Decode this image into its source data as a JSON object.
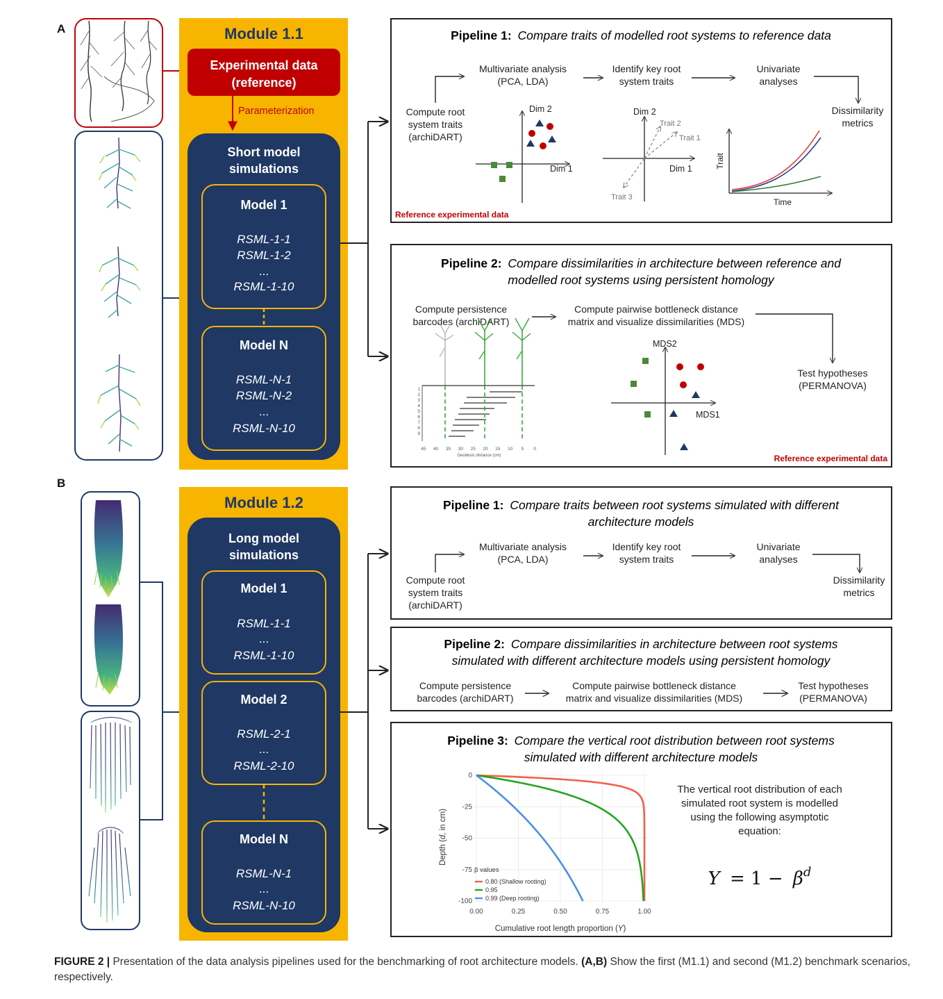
{
  "figure": {
    "caption_label": "FIGURE 2 |",
    "caption_text": "Presentation of the data analysis pipelines used for the benchmarking of root architecture models.",
    "caption_refs": "(A,B)",
    "caption_rest": "Show the first (M1.1) and second (M1.2) benchmark scenarios, respectively."
  },
  "colors": {
    "module_bg": "#f7b500",
    "navy": "#1f3864",
    "red_box": "#c00000",
    "red_outline": "#c0000b",
    "gold_outline": "#f7b500",
    "green_marker": "#4a8a3a",
    "red_marker": "#c00000",
    "blue_marker": "#1f3864",
    "shallow_line": "#f0604c",
    "mid_line": "#26a41f",
    "deep_line": "#4a90e8"
  },
  "panel_a": {
    "label": "A",
    "module_title": "Module 1.1",
    "experimental_line1": "Experimental data",
    "experimental_line2": "(reference)",
    "parameterization": "Parameterization",
    "sims_line1": "Short model",
    "sims_line2": "simulations",
    "model1": {
      "title": "Model 1",
      "items": [
        "RSML-1-1",
        "RSML-1-2",
        "...",
        "RSML-1-10"
      ]
    },
    "modelN": {
      "title": "Model N",
      "items": [
        "RSML-N-1",
        "RSML-N-2",
        "...",
        "RSML-N-10"
      ]
    },
    "pipeline1": {
      "title_bold": "Pipeline 1:",
      "title_italic": "Compare traits of modelled root systems to reference data",
      "step1": [
        "Compute root",
        "system traits",
        "(archiDART)"
      ],
      "step2": [
        "Multivariate analysis",
        "(PCA, LDA)"
      ],
      "step3": [
        "Identify key root",
        "system traits"
      ],
      "step4": [
        "Univariate",
        "analyses"
      ],
      "step5": [
        "Dissimilarity",
        "metrics"
      ],
      "dim1": "Dim 1",
      "dim2": "Dim 2",
      "trait1": "Trait 1",
      "trait2": "Trait 2",
      "trait3": "Trait 3",
      "trait_axis": "Trait",
      "time_axis": "Time",
      "reference": "Reference experimental data"
    },
    "pipeline2": {
      "title_bold": "Pipeline 2:",
      "title_italic_line1": "Compare dissimilarities in architecture between reference and",
      "title_italic_line2": "modelled root systems using persistent homology",
      "step1": [
        "Compute persistence",
        "barcodes (archiDART)"
      ],
      "step2": [
        "Compute pairwise bottleneck distance",
        "matrix and visualize dissimilarities (MDS)"
      ],
      "step3": [
        "Test hypotheses",
        "(PERMANOVA)"
      ],
      "mds1": "MDS1",
      "mds2": "MDS2",
      "geodesic": "Geodesic distance (cm)",
      "geo_ticks": [
        "45",
        "40",
        "35",
        "30",
        "25",
        "20",
        "15",
        "10",
        "5",
        "0"
      ],
      "bar_ticks": [
        "1",
        "2",
        "3",
        "4",
        "5",
        "6",
        "7",
        "8",
        "9"
      ],
      "reference": "Reference experimental data"
    }
  },
  "panel_b": {
    "label": "B",
    "module_title": "Module 1.2",
    "sims_line1": "Long model",
    "sims_line2": "simulations",
    "model1": {
      "title": "Model 1",
      "items": [
        "RSML-1-1",
        "...",
        "RSML-1-10"
      ]
    },
    "model2": {
      "title": "Model 2",
      "items": [
        "RSML-2-1",
        "...",
        "RSML-2-10"
      ]
    },
    "modelN": {
      "title": "Model N",
      "items": [
        "RSML-N-1",
        "...",
        "RSML-N-10"
      ]
    },
    "pipeline1": {
      "title_bold": "Pipeline 1:",
      "title_italic_line1": "Compare traits between root systems simulated with different",
      "title_italic_line2": "architecture models",
      "step1": [
        "Compute root",
        "system traits",
        "(archiDART)"
      ],
      "step2": [
        "Multivariate analysis",
        "(PCA, LDA)"
      ],
      "step3": [
        "Identify key root",
        "system traits"
      ],
      "step4": [
        "Univariate",
        "analyses"
      ],
      "step5": [
        "Dissimilarity",
        "metrics"
      ]
    },
    "pipeline2": {
      "title_bold": "Pipeline 2:",
      "title_italic_line1": "Compare dissimilarities in architecture between root systems",
      "title_italic_line2": "simulated with different architecture models using persistent homology",
      "step1": [
        "Compute persistence",
        "barcodes (archiDART)"
      ],
      "step2": [
        "Compute pairwise bottleneck distance",
        "matrix and visualize dissimilarities (MDS)"
      ],
      "step3": [
        "Test hypotheses",
        "(PERMANOVA)"
      ]
    },
    "pipeline3": {
      "title_bold": "Pipeline 3:",
      "title_italic_line1": "Compare the vertical root distribution between root systems",
      "title_italic_line2": "simulated with different architecture models",
      "description": [
        "The vertical root distribution of each",
        "simulated root system is modelled",
        "using the following asymptotic",
        "equation:"
      ],
      "equation_lhs": "Y",
      "equation_mid": "= 1 −",
      "equation_base": "β",
      "equation_exp": "d",
      "chart_xlabel_pre": "Cumulative root length proportion (",
      "chart_xlabel_var": "Y",
      "chart_xlabel_post": ")",
      "chart_ylabel_pre": "Depth (",
      "chart_ylabel_var": "d",
      "chart_ylabel_post": ", in cm)",
      "x_ticks": [
        "0.00",
        "0.25",
        "0.50",
        "0.75",
        "1.00"
      ],
      "y_ticks": [
        "0",
        "-25",
        "-50",
        "-75",
        "-100"
      ],
      "legend_title": "β values",
      "legend": [
        "0.80 (Shallow rooting)",
        "0.95",
        "0.99 (Deep rooting)"
      ]
    }
  },
  "chart_data": {
    "type": "line",
    "xlabel": "Cumulative root length proportion (Y)",
    "ylabel": "Depth (d, in cm)",
    "xlim": [
      0,
      1
    ],
    "ylim": [
      -100,
      0
    ],
    "legend_title": "β values",
    "series": [
      {
        "name": "0.80 (Shallow rooting)",
        "beta": 0.8
      },
      {
        "name": "0.95",
        "beta": 0.95
      },
      {
        "name": "0.99 (Deep rooting)",
        "beta": 0.99
      }
    ]
  }
}
